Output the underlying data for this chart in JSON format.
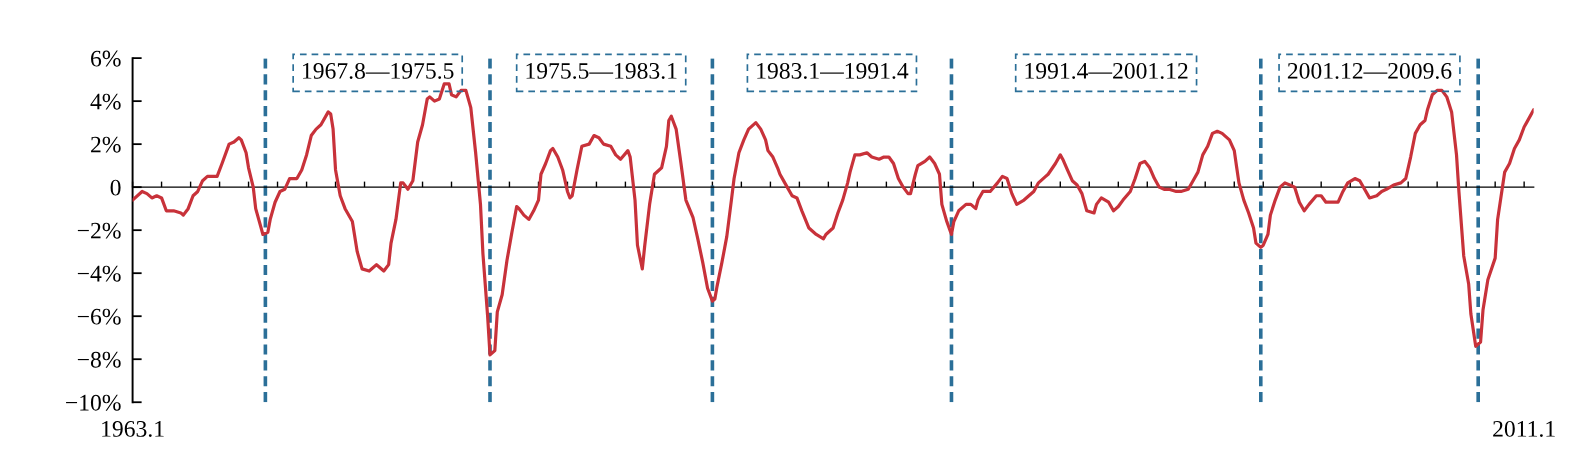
{
  "chart_data": {
    "type": "line",
    "x": [
      "1963-01",
      "1963-05",
      "1963-07",
      "1963-09",
      "1963-11",
      "1964-01",
      "1964-03",
      "1964-06",
      "1964-09",
      "1964-10",
      "1964-12",
      "1965-02",
      "1965-04",
      "1965-06",
      "1965-08",
      "1965-10",
      "1965-12",
      "1966-02",
      "1966-05",
      "1966-07",
      "1966-09",
      "1966-10",
      "1966-12",
      "1967-01",
      "1967-03",
      "1967-04",
      "1967-06",
      "1967-07",
      "1967-09",
      "1967-10",
      "1967-12",
      "1968-02",
      "1968-04",
      "1968-06",
      "1968-08",
      "1968-09",
      "1968-11",
      "1969-01",
      "1969-03",
      "1969-05",
      "1969-07",
      "1969-10",
      "1969-11",
      "1969-12",
      "1970-01",
      "1970-03",
      "1970-05",
      "1970-08",
      "1970-10",
      "1970-12",
      "1971-03",
      "1971-06",
      "1971-07",
      "1971-09",
      "1971-11",
      "1971-12",
      "1972-02",
      "1972-04",
      "1972-05",
      "1972-07",
      "1972-09",
      "1972-11",
      "1973-01",
      "1973-03",
      "1973-04",
      "1973-06",
      "1973-08",
      "1973-10",
      "1973-12",
      "1974-01",
      "1974-03",
      "1974-05",
      "1974-07",
      "1974-09",
      "1974-11",
      "1975-01",
      "1975-02",
      "1975-04",
      "1975-05",
      "1975-07",
      "1975-08",
      "1975-10",
      "1975-12",
      "1976-02",
      "1976-04",
      "1976-05",
      "1976-07",
      "1976-09",
      "1976-11",
      "1977-01",
      "1977-02",
      "1977-04",
      "1977-06",
      "1977-07",
      "1977-09",
      "1977-11",
      "1978-01",
      "1978-02",
      "1978-03",
      "1978-05",
      "1978-07",
      "1978-10",
      "1978-12",
      "1979-02",
      "1979-04",
      "1979-07",
      "1979-09",
      "1979-11",
      "1980-02",
      "1980-03",
      "1980-05",
      "1980-06",
      "1980-08",
      "1980-09",
      "1980-11",
      "1981-01",
      "1981-03",
      "1981-04",
      "1981-06",
      "1981-07",
      "1981-08",
      "1981-10",
      "1981-12",
      "1982-02",
      "1982-05",
      "1982-07",
      "1982-09",
      "1982-11",
      "1983-01",
      "1983-02",
      "1983-03",
      "1983-05",
      "1983-07",
      "1983-09",
      "1983-10",
      "1983-12",
      "1984-02",
      "1984-04",
      "1984-07",
      "1984-09",
      "1984-11",
      "1984-12",
      "1985-02",
      "1985-04",
      "1985-05",
      "1985-07",
      "1985-10",
      "1985-12",
      "1986-02",
      "1986-05",
      "1986-08",
      "1986-11",
      "1986-12",
      "1987-03",
      "1987-05",
      "1987-07",
      "1987-09",
      "1987-10",
      "1987-12",
      "1988-02",
      "1988-05",
      "1988-07",
      "1988-10",
      "1988-12",
      "1989-02",
      "1989-04",
      "1989-06",
      "1989-08",
      "1989-10",
      "1989-11",
      "1990-01",
      "1990-02",
      "1990-05",
      "1990-07",
      "1990-09",
      "1990-11",
      "1990-12",
      "1991-02",
      "1991-04",
      "1991-05",
      "1991-07",
      "1991-10",
      "1991-12",
      "1992-02",
      "1992-03",
      "1992-05",
      "1992-08",
      "1992-11",
      "1993-01",
      "1993-03",
      "1993-05",
      "1993-07",
      "1993-10",
      "1993-12",
      "1994-02",
      "1994-04",
      "1994-07",
      "1994-08",
      "1994-11",
      "1995-01",
      "1995-02",
      "1995-04",
      "1995-06",
      "1995-08",
      "1995-10",
      "1995-12",
      "1996-03",
      "1996-04",
      "1996-06",
      "1996-09",
      "1996-11",
      "1997-01",
      "1997-03",
      "1997-06",
      "1997-08",
      "1997-10",
      "1997-12",
      "1998-02",
      "1998-04",
      "1998-06",
      "1998-08",
      "1998-10",
      "1999-01",
      "1999-03",
      "1999-06",
      "1999-08",
      "1999-10",
      "1999-12",
      "2000-02",
      "2000-04",
      "2000-06",
      "2000-08",
      "2000-11",
      "2001-01",
      "2001-02",
      "2001-03",
      "2001-05",
      "2001-07",
      "2001-09",
      "2001-10",
      "2001-12",
      "2002-01",
      "2002-03",
      "2002-04",
      "2002-06",
      "2002-08",
      "2002-10",
      "2002-12",
      "2003-02",
      "2003-04",
      "2003-06",
      "2003-08",
      "2003-11",
      "2004-01",
      "2004-03",
      "2004-05",
      "2004-08",
      "2004-10",
      "2004-12",
      "2005-03",
      "2005-05",
      "2005-07",
      "2005-09",
      "2005-12",
      "2006-02",
      "2006-04",
      "2006-07",
      "2006-10",
      "2006-12",
      "2007-02",
      "2007-04",
      "2007-06",
      "2007-08",
      "2007-09",
      "2007-11",
      "2008-01",
      "2008-03",
      "2008-05",
      "2008-07",
      "2008-09",
      "2008-10",
      "2008-12",
      "2009-02",
      "2009-03",
      "2009-05",
      "2009-07",
      "2009-08",
      "2009-10",
      "2010-01",
      "2010-02",
      "2010-05",
      "2010-07",
      "2010-09",
      "2010-11",
      "2011-01",
      "2011-02",
      "2011-05"
    ],
    "series": [
      {
        "color": "#c8323a",
        "values": [
          -0.6,
          -0.2,
          -0.3,
          -0.5,
          -0.4,
          -0.5,
          -1.1,
          -1.1,
          -1.2,
          -1.3,
          -1.0,
          -0.4,
          -0.2,
          0.3,
          0.5,
          0.5,
          0.5,
          1.1,
          2.0,
          2.1,
          2.3,
          2.2,
          1.6,
          0.9,
          0.0,
          -1.0,
          -1.8,
          -2.2,
          -2.1,
          -1.5,
          -0.7,
          -0.2,
          -0.1,
          0.4,
          0.4,
          0.4,
          0.8,
          1.5,
          2.4,
          2.7,
          2.9,
          3.5,
          3.4,
          2.7,
          0.8,
          -0.4,
          -1.0,
          -1.6,
          -3.0,
          -3.8,
          -3.9,
          -3.6,
          -3.7,
          -3.9,
          -3.6,
          -2.6,
          -1.5,
          0.2,
          0.2,
          -0.1,
          0.3,
          2.1,
          2.9,
          4.1,
          4.2,
          4.0,
          4.1,
          4.8,
          4.8,
          4.3,
          4.2,
          4.5,
          4.5,
          3.7,
          1.6,
          -0.8,
          -3.1,
          -6.0,
          -7.8,
          -7.6,
          -5.8,
          -5.0,
          -3.4,
          -2.1,
          -0.9,
          -1.0,
          -1.3,
          -1.5,
          -1.1,
          -0.6,
          0.6,
          1.1,
          1.7,
          1.8,
          1.4,
          0.8,
          -0.2,
          -0.5,
          -0.4,
          0.8,
          1.9,
          2.0,
          2.4,
          2.3,
          2.0,
          1.9,
          1.5,
          1.3,
          1.7,
          1.4,
          -0.6,
          -2.7,
          -3.8,
          -2.7,
          -0.8,
          0.6,
          0.8,
          0.9,
          1.9,
          3.1,
          3.3,
          2.7,
          1.1,
          -0.6,
          -1.4,
          -2.4,
          -3.5,
          -4.7,
          -5.3,
          -5.2,
          -4.6,
          -3.5,
          -2.3,
          -0.5,
          0.4,
          1.6,
          2.2,
          2.7,
          3.0,
          2.7,
          2.2,
          1.7,
          1.4,
          0.9,
          0.6,
          0.2,
          -0.4,
          -0.5,
          -1.1,
          -1.9,
          -2.2,
          -2.4,
          -2.2,
          -1.9,
          -1.2,
          -0.6,
          0.2,
          0.7,
          1.5,
          1.5,
          1.6,
          1.4,
          1.3,
          1.4,
          1.4,
          1.1,
          0.4,
          0.0,
          -0.3,
          -0.3,
          0.6,
          1.0,
          1.2,
          1.4,
          1.1,
          0.6,
          -0.8,
          -1.6,
          -2.2,
          -1.6,
          -1.1,
          -0.8,
          -0.8,
          -1.0,
          -0.6,
          -0.2,
          -0.2,
          0.2,
          0.5,
          0.4,
          -0.3,
          -0.8,
          -0.6,
          -0.4,
          -0.2,
          0.2,
          0.5,
          0.6,
          1.1,
          1.5,
          1.3,
          0.8,
          0.3,
          0.1,
          -0.3,
          -1.1,
          -1.2,
          -0.8,
          -0.5,
          -0.7,
          -1.1,
          -0.9,
          -0.6,
          -0.2,
          0.4,
          1.1,
          1.2,
          0.9,
          0.4,
          0.0,
          -0.1,
          -0.1,
          -0.2,
          -0.2,
          -0.1,
          0.3,
          0.7,
          1.5,
          1.9,
          2.5,
          2.6,
          2.5,
          2.2,
          1.7,
          0.9,
          0.2,
          -0.6,
          -1.2,
          -1.9,
          -2.6,
          -2.8,
          -2.7,
          -2.2,
          -1.3,
          -0.6,
          0.0,
          0.2,
          0.1,
          0.0,
          -0.7,
          -1.1,
          -0.8,
          -0.4,
          -0.4,
          -0.7,
          -0.7,
          -0.7,
          -0.2,
          0.2,
          0.4,
          0.3,
          -0.1,
          -0.5,
          -0.4,
          -0.2,
          -0.1,
          0.1,
          0.2,
          0.4,
          1.4,
          2.5,
          2.9,
          3.1,
          3.6,
          4.3,
          4.5,
          4.5,
          4.2,
          3.5,
          1.5,
          -0.2,
          -3.2,
          -4.5,
          -5.9,
          -7.4,
          -7.2,
          -5.7,
          -4.3,
          -3.3,
          -1.5,
          0.7,
          1.1,
          1.8,
          2.2,
          2.8,
          3.0,
          3.6
        ]
      }
    ],
    "xlim": [
      "1963-01",
      "2011-05"
    ],
    "xticks": [
      {
        "value": "1963-01",
        "label": "1963.1"
      },
      {
        "value": "1964-01",
        "label": null
      },
      {
        "value": "1965-01",
        "label": null
      },
      {
        "value": "1966-01",
        "label": null
      },
      {
        "value": "1967-01",
        "label": null
      },
      {
        "value": "1968-01",
        "label": null
      },
      {
        "value": "1969-01",
        "label": null
      },
      {
        "value": "1970-01",
        "label": null
      },
      {
        "value": "1971-01",
        "label": null
      },
      {
        "value": "1972-01",
        "label": null
      },
      {
        "value": "1973-01",
        "label": null
      },
      {
        "value": "1974-01",
        "label": null
      },
      {
        "value": "1975-01",
        "label": null
      },
      {
        "value": "1976-01",
        "label": null
      },
      {
        "value": "1977-01",
        "label": null
      },
      {
        "value": "1978-01",
        "label": null
      },
      {
        "value": "1979-01",
        "label": null
      },
      {
        "value": "1980-01",
        "label": null
      },
      {
        "value": "1981-01",
        "label": null
      },
      {
        "value": "1982-01",
        "label": null
      },
      {
        "value": "1983-01",
        "label": null
      },
      {
        "value": "1984-01",
        "label": null
      },
      {
        "value": "1985-01",
        "label": null
      },
      {
        "value": "1986-01",
        "label": null
      },
      {
        "value": "1987-01",
        "label": null
      },
      {
        "value": "1988-01",
        "label": null
      },
      {
        "value": "1989-01",
        "label": null
      },
      {
        "value": "1990-01",
        "label": null
      },
      {
        "value": "1991-01",
        "label": null
      },
      {
        "value": "1992-01",
        "label": null
      },
      {
        "value": "1993-01",
        "label": null
      },
      {
        "value": "1994-01",
        "label": null
      },
      {
        "value": "1995-01",
        "label": null
      },
      {
        "value": "1996-01",
        "label": null
      },
      {
        "value": "1997-01",
        "label": null
      },
      {
        "value": "1998-01",
        "label": null
      },
      {
        "value": "1999-01",
        "label": null
      },
      {
        "value": "2000-01",
        "label": null
      },
      {
        "value": "2001-01",
        "label": null
      },
      {
        "value": "2002-01",
        "label": null
      },
      {
        "value": "2003-01",
        "label": null
      },
      {
        "value": "2004-01",
        "label": null
      },
      {
        "value": "2005-01",
        "label": null
      },
      {
        "value": "2006-01",
        "label": null
      },
      {
        "value": "2007-01",
        "label": null
      },
      {
        "value": "2008-01",
        "label": null
      },
      {
        "value": "2009-01",
        "label": null
      },
      {
        "value": "2010-01",
        "label": null
      },
      {
        "value": "2011-01",
        "label": "2011.1"
      }
    ],
    "ylim": [
      -10,
      6
    ],
    "yticks": [
      {
        "value": -10,
        "label": "−10%"
      },
      {
        "value": -8,
        "label": "−8%"
      },
      {
        "value": -6,
        "label": "−6%"
      },
      {
        "value": -4,
        "label": "−4%"
      },
      {
        "value": -2,
        "label": "−2%"
      },
      0,
      {
        "value": 2,
        "label": "2%"
      },
      {
        "value": 4,
        "label": "4%"
      },
      {
        "value": 6,
        "label": "6%"
      }
    ],
    "ref_lines": [
      {
        "axis": "x",
        "value": "1967-08",
        "color": "#2b6f98",
        "line_style": "dashed"
      },
      {
        "axis": "x",
        "value": "1975-05",
        "color": "#2b6f98",
        "line_style": "dashed"
      },
      {
        "axis": "x",
        "value": "1983-01",
        "color": "#2b6f98",
        "line_style": "dashed"
      },
      {
        "axis": "x",
        "value": "1991-04",
        "color": "#2b6f98",
        "line_style": "dashed"
      },
      {
        "axis": "x",
        "value": "2001-12",
        "color": "#2b6f98",
        "line_style": "dashed"
      },
      {
        "axis": "x",
        "value": "2009-06",
        "color": "#2b6f98",
        "line_style": "dashed"
      }
    ],
    "annotations": [
      "1967.8—1975.5",
      "1975.5—1983.1",
      "1983.1—1991.4",
      "1991.4—2001.12",
      "2001.12—2009.6"
    ]
  }
}
